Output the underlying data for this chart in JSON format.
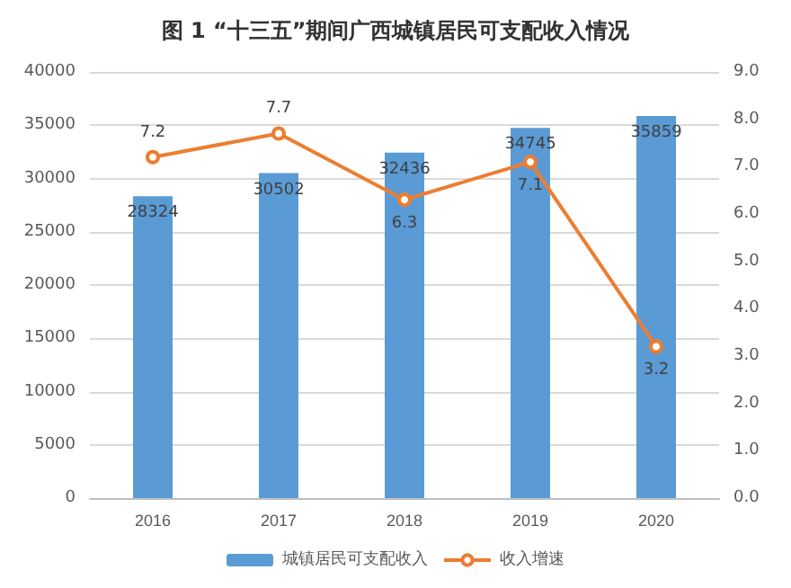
{
  "chart_data": {
    "type": "bar",
    "title": "图 1 “十三五”期间广西城镇居民可支配收入情况",
    "categories": [
      "2016",
      "2017",
      "2018",
      "2019",
      "2020"
    ],
    "series": [
      {
        "name": "城镇居民可支配收入",
        "color": "#5b9bd5",
        "values": [
          28324,
          30502,
          32436,
          34745,
          35859
        ]
      },
      {
        "name": "收入增速",
        "type": "line",
        "axis": "y2",
        "color": "#ed7d31",
        "marker": "circle",
        "values": [
          7.2,
          7.7,
          6.3,
          7.1,
          3.2
        ]
      }
    ],
    "ylim": [
      0,
      40000
    ],
    "yticks": [
      0,
      5000,
      10000,
      15000,
      20000,
      25000,
      30000,
      35000,
      40000
    ],
    "y2lim": [
      0,
      9
    ],
    "y2ticks": [
      {
        "value": 0,
        "label": "0.0"
      },
      {
        "value": 1,
        "label": "1.0"
      },
      {
        "value": 2,
        "label": "2.0"
      },
      {
        "value": 3,
        "label": "3.0"
      },
      {
        "value": 4,
        "label": "4.0"
      },
      {
        "value": 5,
        "label": "5.0"
      },
      {
        "value": 6,
        "label": "6.0"
      },
      {
        "value": 7,
        "label": "7.0"
      },
      {
        "value": 8,
        "label": "8.0"
      },
      {
        "value": 9,
        "label": "9.0"
      }
    ],
    "data_labels": true,
    "grid": "y",
    "legend": "bottom"
  }
}
